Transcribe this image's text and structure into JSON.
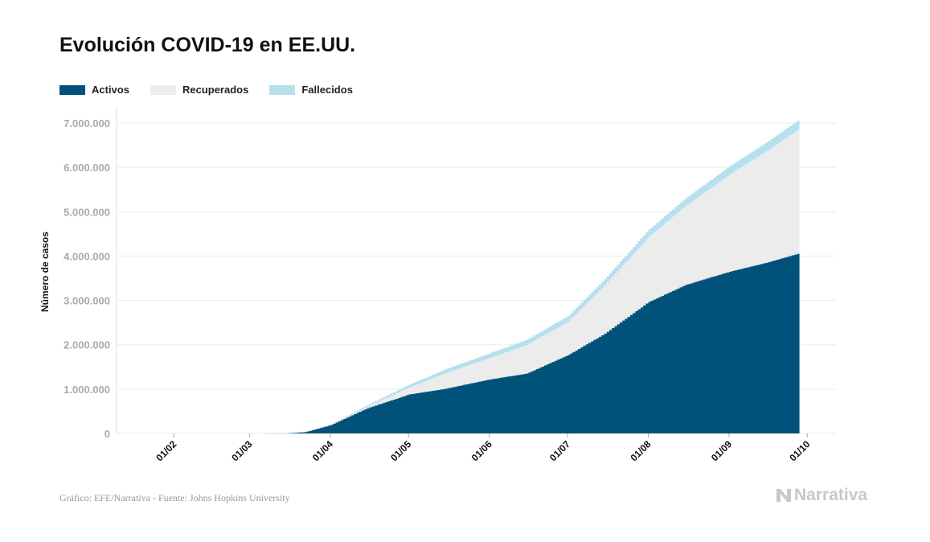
{
  "title": "Evolución COVID-19 en EE.UU.",
  "source": "Gráfico: EFE/Narrativa - Fuente: Johns Hopkins University",
  "logo_text": "Narrativa",
  "chart_data": {
    "type": "area",
    "stacked": true,
    "ylabel": "Número de casos",
    "xlabel": "",
    "ylim": [
      0,
      7000000
    ],
    "xlim": [
      "2020-01-10",
      "2020-10-12"
    ],
    "grid": true,
    "legend_position": "top-left",
    "y_ticks": [
      0,
      1000000,
      2000000,
      3000000,
      4000000,
      5000000,
      6000000,
      7000000
    ],
    "y_tick_labels": [
      "0",
      "1.000.000",
      "2.000.000",
      "3.000.000",
      "4.000.000",
      "5.000.000",
      "6.000.000",
      "7.000.000"
    ],
    "x_ticks": [
      "2020-02-01",
      "2020-03-01",
      "2020-04-01",
      "2020-05-01",
      "2020-06-01",
      "2020-07-01",
      "2020-08-01",
      "2020-09-01",
      "2020-10-01"
    ],
    "x_tick_labels": [
      "01/02",
      "01/03",
      "01/04",
      "01/05",
      "01/06",
      "01/07",
      "01/08",
      "01/09",
      "01/10"
    ],
    "x": [
      "2020-01-22",
      "2020-03-01",
      "2020-03-15",
      "2020-03-22",
      "2020-04-01",
      "2020-04-15",
      "2020-05-01",
      "2020-05-15",
      "2020-06-01",
      "2020-06-15",
      "2020-07-01",
      "2020-07-15",
      "2020-08-01",
      "2020-08-15",
      "2020-09-01",
      "2020-09-15",
      "2020-09-27"
    ],
    "series": [
      {
        "name": "Activos",
        "color": "#00527a",
        "values": [
          0,
          0,
          2900,
          29000,
          190000,
          570000,
          880000,
          1010000,
          1220000,
          1350000,
          1770000,
          2250000,
          2970000,
          3350000,
          3650000,
          3850000,
          4050000
        ]
      },
      {
        "name": "Recuperados",
        "color": "#ececec",
        "values": [
          0,
          0,
          40,
          600,
          15000,
          40000,
          155000,
          353000,
          485000,
          643000,
          752000,
          1093000,
          1475000,
          1780000,
          2195000,
          2514000,
          2795000
        ]
      },
      {
        "name": "Fallecidos",
        "color": "#b5e0ee",
        "values": [
          0,
          0,
          60,
          400,
          5000,
          30000,
          65000,
          87000,
          105000,
          117000,
          128000,
          137000,
          155000,
          170000,
          185000,
          196000,
          205000
        ]
      }
    ]
  }
}
